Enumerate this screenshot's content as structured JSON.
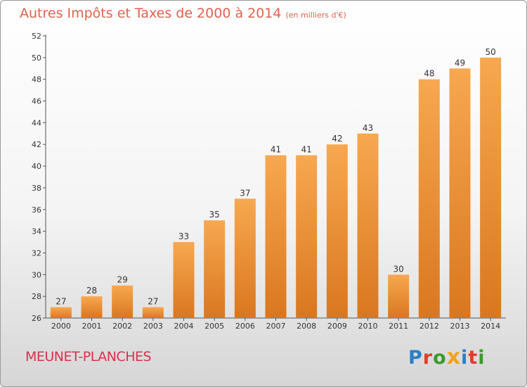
{
  "header": {
    "title": "Autres Impôts et Taxes de 2000 à 2014",
    "subtitle": "(en milliers d'€)"
  },
  "footer": {
    "commune": "MEUNET-PLANCHES",
    "logo_text": "Proxiti"
  },
  "colors": {
    "bar_light": "#f7a850",
    "bar_dark": "#d97720",
    "title": "#e0614d",
    "commune": "#d9314d"
  },
  "chart_data": {
    "type": "bar",
    "title": "Autres Impôts et Taxes de 2000 à 2014",
    "subtitle": "(en milliers d'€)",
    "categories": [
      "2000",
      "2001",
      "2002",
      "2003",
      "2004",
      "2005",
      "2006",
      "2007",
      "2008",
      "2009",
      "2010",
      "2011",
      "2012",
      "2013",
      "2014"
    ],
    "values": [
      27,
      28,
      29,
      27,
      33,
      35,
      37,
      41,
      41,
      42,
      43,
      30,
      48,
      49,
      50
    ],
    "ylim": [
      26,
      52
    ],
    "yticks": [
      26,
      28,
      30,
      32,
      34,
      36,
      38,
      40,
      42,
      44,
      46,
      48,
      50,
      52
    ],
    "grid": false,
    "data_labels": true
  }
}
